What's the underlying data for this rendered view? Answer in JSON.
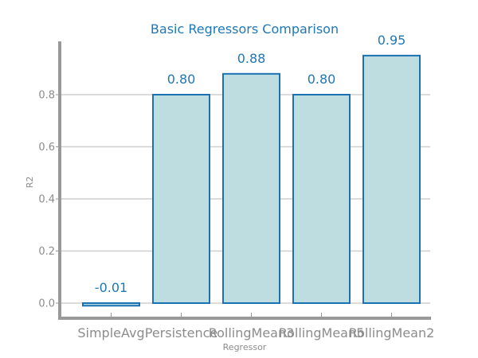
{
  "chart_data": {
    "type": "bar",
    "title": "Basic Regressors Comparison",
    "xlabel": "Regressor",
    "ylabel": "R2",
    "categories": [
      "SimpleAvg",
      "Persistence",
      "RollingMean3",
      "RollingMean5",
      "RollingMean2"
    ],
    "values": [
      -0.01,
      0.8,
      0.88,
      0.8,
      0.95
    ],
    "data_labels": [
      "-0.01",
      "0.80",
      "0.88",
      "0.80",
      "0.95"
    ],
    "yticks": [
      0.0,
      0.2,
      0.4,
      0.6,
      0.8
    ],
    "ytick_labels": [
      "0.0",
      "0.2",
      "0.4",
      "0.6",
      "0.8"
    ],
    "ylim": [
      -0.06,
      1.0
    ],
    "grid": "horizontal",
    "colors": {
      "bar_fill": "#bedde1",
      "bar_edge": "#1a72b3",
      "label": "#1f77b4",
      "axis": "#999999",
      "grid": "#cfcfcf"
    }
  }
}
